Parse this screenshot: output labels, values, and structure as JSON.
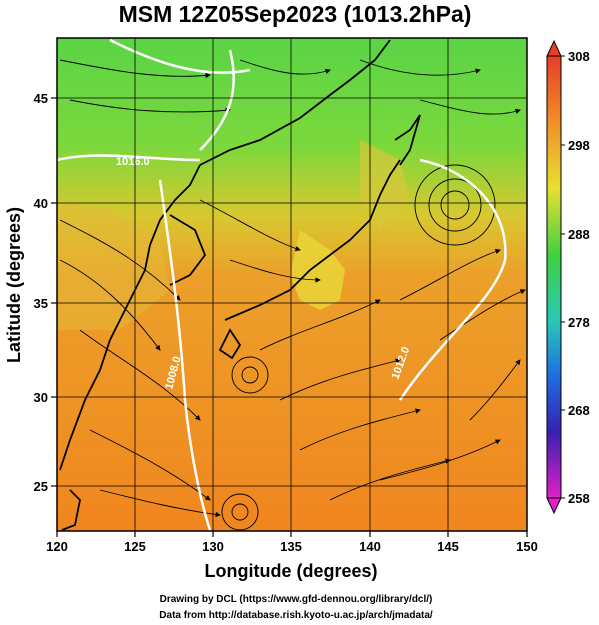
{
  "title": "MSM 12Z05Sep2023 (1013.2hPa)",
  "x_axis": {
    "label": "Longitude (degrees)",
    "ticks": [
      "120",
      "125",
      "130",
      "135",
      "140",
      "145",
      "150"
    ]
  },
  "y_axis": {
    "label": "Latitude  (degrees)",
    "ticks": [
      "25",
      "30",
      "35",
      "40",
      "45"
    ]
  },
  "colorbar": {
    "ticks": [
      "308",
      "298",
      "288",
      "278",
      "268",
      "258"
    ],
    "min": 258,
    "max": 308
  },
  "contour_labels": [
    "1016.0",
    "1008.0",
    "1012.0"
  ],
  "credits": {
    "line1": "Drawing by DCL (https://www.gfd-dennou.org/library/dcl/)",
    "line2": "Data from http://database.rish.kyoto-u.ac.jp/arch/jmadata/"
  },
  "colors": {
    "warm_sea": "#f08a1f",
    "mid_land": "#e8c030",
    "cool_north": "#58d84a",
    "coast": "#000000",
    "isobar": "#ffffff"
  }
}
